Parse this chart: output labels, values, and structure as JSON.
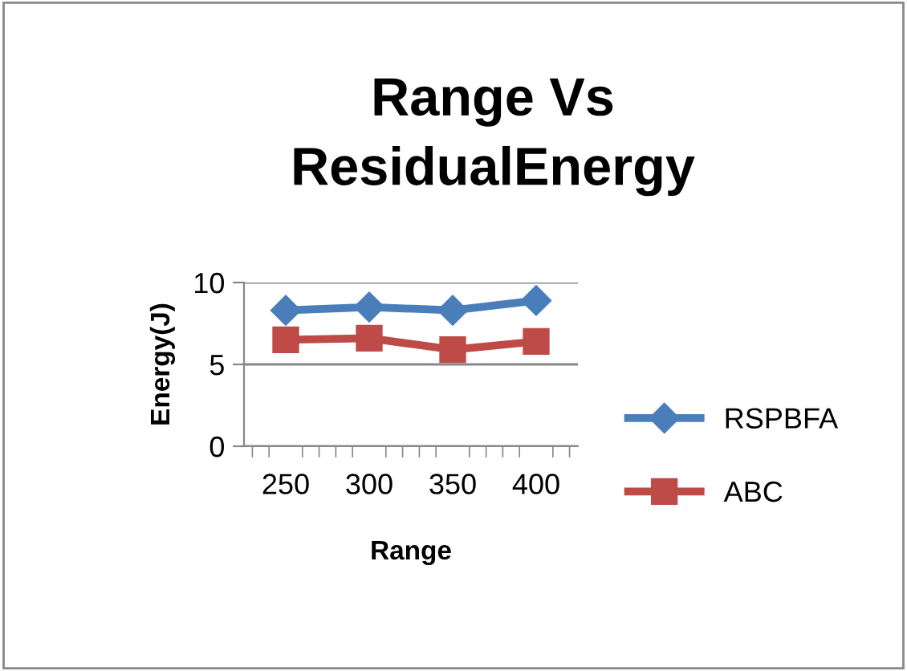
{
  "chart_data": {
    "type": "line",
    "title": "Range Vs\nResidualEnergy",
    "xlabel": "Range",
    "ylabel": "Energy(J)",
    "categories": [
      "250",
      "300",
      "350",
      "400"
    ],
    "series": [
      {
        "name": "RSPBFA",
        "color": "#4a7ebb",
        "values": [
          8.3,
          8.5,
          8.3,
          8.9
        ],
        "marker": "diamond"
      },
      {
        "name": "ABC",
        "color": "#be4b48",
        "values": [
          6.5,
          6.6,
          5.9,
          6.4
        ],
        "marker": "square"
      }
    ],
    "ylim": [
      0,
      10
    ],
    "yticks": [
      0,
      5,
      10
    ],
    "grid": "y",
    "legend": "right",
    "line_style": "solid"
  }
}
